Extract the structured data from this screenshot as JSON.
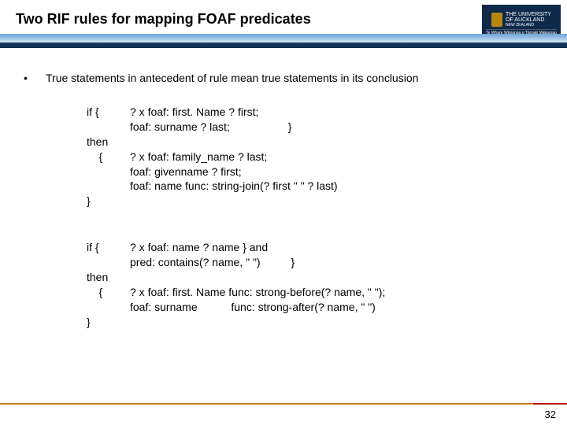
{
  "header": {
    "title": "Two RIF rules for mapping FOAF predicates",
    "logo": {
      "line1": "THE UNIVERSITY",
      "line2": "OF AUCKLAND",
      "sub": "Te Whare Wānanga o Tāmaki Makaurau",
      "nz": "NEW ZEALAND"
    }
  },
  "bullet": {
    "marker": "•",
    "text": "True statements in antecedent of rule mean true statements in its conclusion"
  },
  "rule1": {
    "if_kw": "if {",
    "if_body1": "? x foaf: first. Name ? first;",
    "if_body2": "foaf: surname ? last;                   }",
    "then_kw": "then",
    "then_brace": "    {",
    "then_body1": "? x foaf: family_name ? last;",
    "then_body2": "foaf: givenname ? first;",
    "then_body3": "foaf: name func: string-join(? first \" \" ? last)",
    "close": "}"
  },
  "rule2": {
    "if_kw": "if {",
    "if_body1": "? x foaf: name ? name } and",
    "if_body2": "pred: contains(? name, \" \")          }",
    "then_kw": "then",
    "then_brace": "    {",
    "then_body1": "? x foaf: first. Name func: strong-before(? name, \" \");",
    "then_body2": "foaf: surname           func: strong-after(? name, \" \")",
    "close": "}"
  },
  "page_number": "32"
}
